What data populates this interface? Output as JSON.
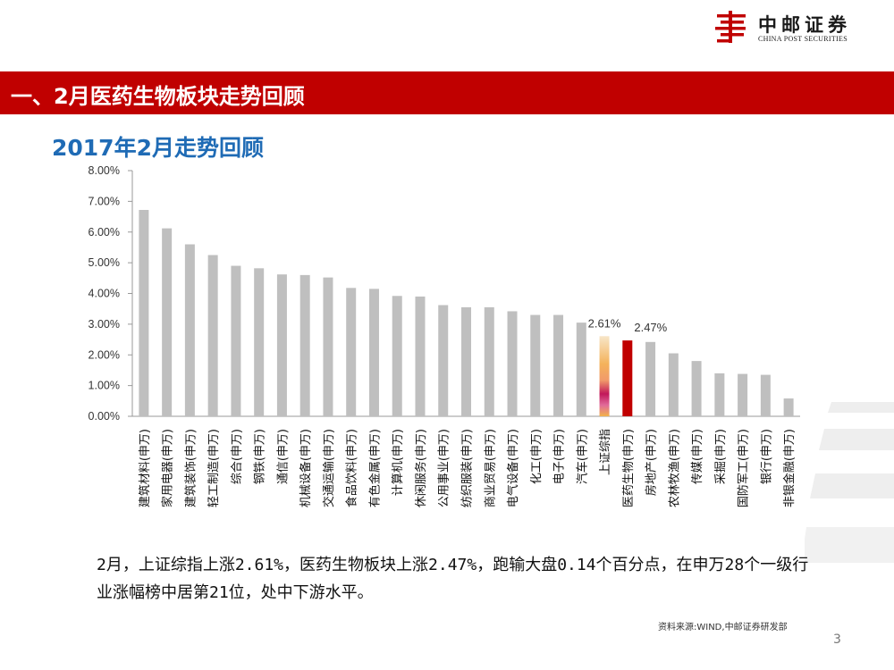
{
  "logo": {
    "name_cn": "中邮证券",
    "name_en": "CHINA POST SECURITIES"
  },
  "header": {
    "title": "一、2月医药生物板块走势回顾"
  },
  "subtitle": "2017年2月走势回顾",
  "chart_data": {
    "type": "bar",
    "title": "2017年2月走势回顾",
    "xlabel": "",
    "ylabel": "",
    "ylim": [
      0,
      8
    ],
    "yticks": [
      "0.00%",
      "1.00%",
      "2.00%",
      "3.00%",
      "4.00%",
      "5.00%",
      "6.00%",
      "7.00%",
      "8.00%"
    ],
    "grid": false,
    "categories": [
      "建筑材料(申万)",
      "家用电器(申万)",
      "建筑装饰(申万)",
      "轻工制造(申万)",
      "综合(申万)",
      "钢铁(申万)",
      "通信(申万)",
      "机械设备(申万)",
      "交通运输(申万)",
      "食品饮料(申万)",
      "有色金属(申万)",
      "计算机(申万)",
      "休闲服务(申万)",
      "公用事业(申万)",
      "纺织服装(申万)",
      "商业贸易(申万)",
      "电气设备(申万)",
      "化工(申万)",
      "电子(申万)",
      "汽车(申万)",
      "上证综指",
      "医药生物(申万)",
      "房地产(申万)",
      "农林牧渔(申万)",
      "传媒(申万)",
      "采掘(申万)",
      "国防军工(申万)",
      "银行(申万)",
      "非银金融(申万)"
    ],
    "values": [
      6.72,
      6.12,
      5.6,
      5.25,
      4.9,
      4.82,
      4.62,
      4.6,
      4.52,
      4.18,
      4.15,
      3.92,
      3.9,
      3.62,
      3.55,
      3.55,
      3.42,
      3.3,
      3.3,
      3.05,
      2.61,
      2.47,
      2.42,
      2.05,
      1.8,
      1.4,
      1.38,
      1.35,
      0.58
    ],
    "annotations": [
      {
        "category": "上证综指",
        "text": "2.61%"
      },
      {
        "category": "医药生物(申万)",
        "text": "2.47%"
      }
    ],
    "colors": {
      "default": "#bfbfbf",
      "highlight": "#c00000",
      "axis": "#999999"
    }
  },
  "caption": "2月，上证综指上涨2.61%，医药生物板块上涨2.47%，跑输大盘0.14个百分点，在申万28个一级行业涨幅榜中居第21位，处中下游水平。",
  "source": "资料来源:WIND,中邮证券研发部",
  "page_number": "3"
}
